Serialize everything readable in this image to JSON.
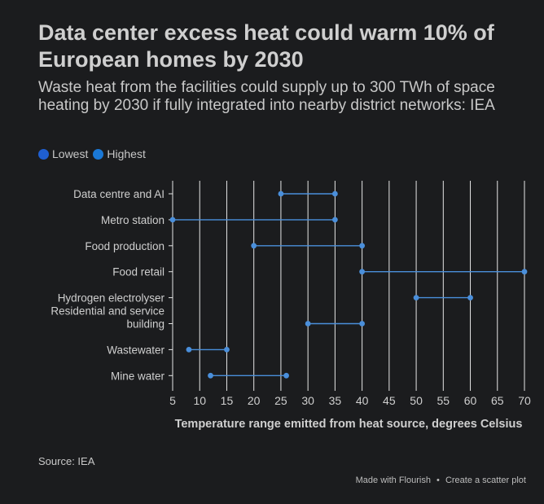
{
  "title": "Data center excess heat could warm 10% of European homes by 2030",
  "subtitle": "Waste heat from the facilities could supply up to 300 TWh of space heating by 2030 if fully integrated into nearby district networks: IEA",
  "legend": [
    {
      "label": "Lowest",
      "color": "#1f5fd1"
    },
    {
      "label": "Highest",
      "color": "#1a78d6"
    }
  ],
  "source": "Source: IEA",
  "credit": {
    "made_with": "Made with Flourish",
    "separator": "•",
    "create": "Create a scatter plot"
  },
  "chart_data": {
    "type": "scatter",
    "xlabel": "Temperature range emitted from heat source, degrees Celsius",
    "xlim": [
      5,
      70
    ],
    "xticks": [
      5,
      10,
      15,
      20,
      25,
      30,
      35,
      40,
      45,
      50,
      55,
      60,
      65,
      70
    ],
    "grid": true,
    "legend_position": "top-left",
    "line_color": "#4a8fdb",
    "point_color": "#4a8fdb",
    "categories": [
      [
        "Data centre and AI"
      ],
      [
        "Metro station"
      ],
      [
        "Food production"
      ],
      [
        "Food retail"
      ],
      [
        "Hydrogen electrolyser"
      ],
      [
        "Residential and service",
        "building"
      ],
      [
        "Wastewater"
      ],
      [
        "Mine water"
      ]
    ],
    "series": [
      {
        "name": "Lowest",
        "values": [
          25,
          5,
          20,
          40,
          50,
          30,
          8,
          12
        ]
      },
      {
        "name": "Highest",
        "values": [
          35,
          35,
          40,
          70,
          60,
          40,
          15,
          26
        ]
      }
    ]
  }
}
